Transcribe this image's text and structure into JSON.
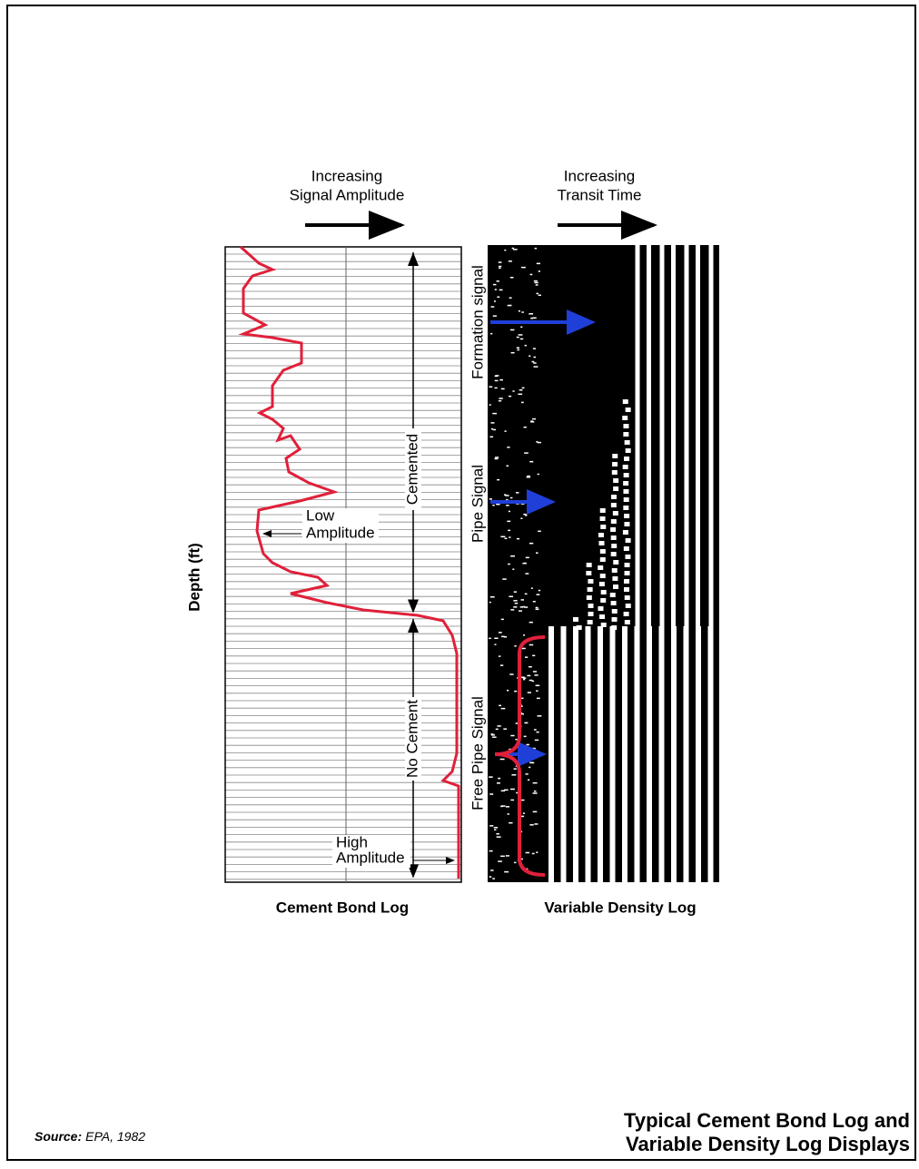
{
  "header": {
    "left_top": "Increasing",
    "left_bottom": "Signal Amplitude",
    "right_top": "Increasing",
    "right_bottom": "Transit Time"
  },
  "axis": {
    "depth": "Depth (ft)"
  },
  "cbl": {
    "cemented": "Cemented",
    "no_cement": "No Cement",
    "low": [
      "Low",
      "Amplitude"
    ],
    "high": [
      "High",
      "Amplitude"
    ],
    "caption": "Cement Bond Log"
  },
  "vdl": {
    "formation": "Formation signal",
    "pipe": "Pipe Signal",
    "free_pipe": "Free Pipe Signal",
    "caption": "Variable Density Log"
  },
  "footer": {
    "source_label": "Source:",
    "source": "EPA, 1982",
    "title": [
      "Typical Cement Bond Log and",
      "Variable Density Log Displays"
    ]
  }
}
